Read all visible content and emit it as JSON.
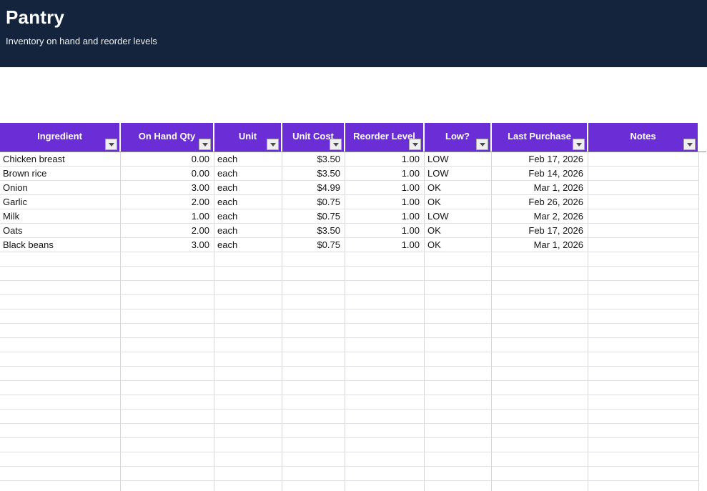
{
  "banner": {
    "title": "Pantry",
    "subtitle": "Inventory on hand and reorder levels",
    "bg_color": "#14243d"
  },
  "table": {
    "header_bg_color": "#6b2ed6",
    "header_text_color": "#ffffff",
    "filter_icon": "caret-down-icon",
    "columns": [
      {
        "label": "Ingredient",
        "align": "left"
      },
      {
        "label": "On Hand Qty",
        "align": "right"
      },
      {
        "label": "Unit",
        "align": "left"
      },
      {
        "label": "Unit Cost",
        "align": "right"
      },
      {
        "label": "Reorder Level",
        "align": "right"
      },
      {
        "label": "Low?",
        "align": "left"
      },
      {
        "label": "Last Purchase",
        "align": "right"
      },
      {
        "label": "Notes",
        "align": "left"
      }
    ],
    "rows": [
      [
        "Chicken breast",
        "0.00",
        "each",
        "$3.50",
        "1.00",
        "LOW",
        "Feb 17, 2026",
        ""
      ],
      [
        "Brown rice",
        "0.00",
        "each",
        "$3.50",
        "1.00",
        "LOW",
        "Feb 14, 2026",
        ""
      ],
      [
        "Onion",
        "3.00",
        "each",
        "$4.99",
        "1.00",
        "OK",
        "Mar 1, 2026",
        ""
      ],
      [
        "Garlic",
        "2.00",
        "each",
        "$0.75",
        "1.00",
        "OK",
        "Feb 26, 2026",
        ""
      ],
      [
        "Milk",
        "1.00",
        "each",
        "$0.75",
        "1.00",
        "LOW",
        "Mar 2, 2026",
        ""
      ],
      [
        "Oats",
        "2.00",
        "each",
        "$3.50",
        "1.00",
        "OK",
        "Feb 17, 2026",
        ""
      ],
      [
        "Black beans",
        "3.00",
        "each",
        "$0.75",
        "1.00",
        "OK",
        "Mar 1, 2026",
        ""
      ]
    ],
    "empty_row_count": 17
  }
}
